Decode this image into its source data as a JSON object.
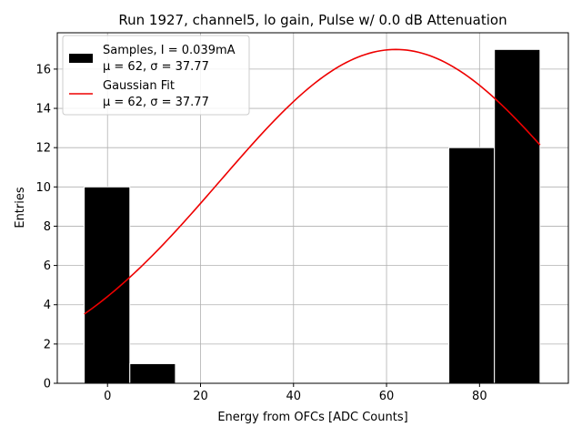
{
  "chart_data": {
    "type": "bar",
    "title": "Run 1927, channel5, lo gain, Pulse w/ 0.0 dB Attenuation",
    "xlabel": "Energy from OFCs [ADC Counts]",
    "ylabel": "Entries",
    "xlim": [
      -10.8,
      99.1
    ],
    "ylim": [
      0,
      17.85
    ],
    "xticks": [
      0,
      20,
      40,
      60,
      80
    ],
    "yticks": [
      0,
      2,
      4,
      6,
      8,
      10,
      12,
      14,
      16
    ],
    "grid": true,
    "legend_position": "top-left",
    "histogram": {
      "name": "Samples, I = 0.039mA",
      "stats": "μ = 62, σ = 37.77",
      "color": "#000000",
      "bins": [
        {
          "x0": -5,
          "x1": 4.8,
          "count": 10
        },
        {
          "x0": 4.8,
          "x1": 14.6,
          "count": 1
        },
        {
          "x0": 14.6,
          "x1": 24.4,
          "count": 0
        },
        {
          "x0": 24.4,
          "x1": 34.2,
          "count": 0
        },
        {
          "x0": 34.2,
          "x1": 44.0,
          "count": 0
        },
        {
          "x0": 44.0,
          "x1": 53.8,
          "count": 0
        },
        {
          "x0": 53.8,
          "x1": 63.6,
          "count": 0
        },
        {
          "x0": 63.6,
          "x1": 73.4,
          "count": 0
        },
        {
          "x0": 73.4,
          "x1": 83.2,
          "count": 12
        },
        {
          "x0": 83.2,
          "x1": 93.0,
          "count": 17
        }
      ]
    },
    "fit": {
      "name": "Gaussian Fit",
      "stats": "μ = 62, σ = 37.77",
      "color": "#ee0000",
      "amplitude": 17,
      "mu": 62,
      "sigma": 37.77,
      "x_range": [
        -5,
        93
      ]
    }
  }
}
